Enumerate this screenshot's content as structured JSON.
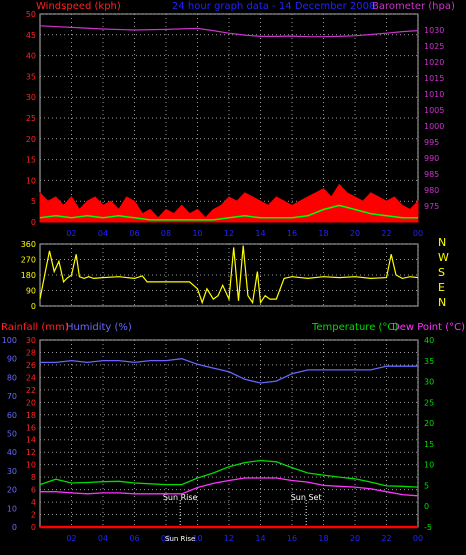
{
  "header": {
    "windspeed_label": "Windspeed (kph)",
    "title": "24 hour graph data - 14 December 2008",
    "barometer_label": "Barometer (hpa)"
  },
  "lower_header": {
    "rainfall_label": "Rainfall (mm)",
    "humidity_label": "Humidity (%)",
    "temperature_label": "Temperature (°C)",
    "dewpoint_label": "Dew Point (°C)"
  },
  "compass": [
    "N",
    "W",
    "S",
    "E",
    "N"
  ],
  "sun": {
    "rise_label": "Sun Rise",
    "set_label": "Sun Set",
    "rise_hour": 8.9,
    "set_hour": 16.9,
    "rise_time_label": "Sun Rise"
  },
  "colors": {
    "wind": "#ff0000",
    "gust": "#ff0000",
    "avg_wind": "#00ff00",
    "barometer": "#cc33cc",
    "direction": "#ffff00",
    "humidity": "#6666ff",
    "temperature": "#00dd00",
    "dewpoint": "#ff33ff",
    "rainfall": "#ff0000",
    "grid": "#9a9a9a",
    "axis_title": "#2222ff"
  },
  "chart_data": [
    {
      "type": "area",
      "name": "wind-barometer",
      "x_ticks": [
        "02",
        "04",
        "06",
        "08",
        "10",
        "12",
        "14",
        "16",
        "18",
        "20",
        "22",
        "00"
      ],
      "xlim": [
        0,
        24
      ],
      "y_left": {
        "label": "Windspeed (kph)",
        "range": [
          0,
          50
        ],
        "ticks": [
          0,
          5,
          10,
          15,
          20,
          25,
          30,
          35,
          40,
          45,
          50
        ]
      },
      "y_right": {
        "label": "Barometer (hpa)",
        "range": [
          970,
          1035
        ],
        "ticks": [
          975,
          980,
          985,
          990,
          995,
          1000,
          1005,
          1010,
          1015,
          1020,
          1025,
          1030
        ]
      },
      "series": [
        {
          "name": "Windspeed (kph)",
          "axis": "left",
          "x": [
            0,
            0.5,
            1,
            1.5,
            2,
            2.5,
            3,
            3.5,
            4,
            4.5,
            5,
            5.5,
            6,
            6.5,
            7,
            7.5,
            8,
            8.5,
            9,
            9.5,
            10,
            10.5,
            11,
            11.5,
            12,
            12.5,
            13,
            13.5,
            14,
            14.5,
            15,
            15.5,
            16,
            16.5,
            17,
            17.5,
            18,
            18.5,
            19,
            19.5,
            20,
            20.5,
            21,
            21.5,
            22,
            22.5,
            23,
            23.5,
            24
          ],
          "values": [
            7,
            5,
            6,
            4,
            6,
            3,
            5,
            6,
            4,
            5,
            3,
            6,
            5,
            2,
            3,
            1,
            3,
            2,
            4,
            2,
            3,
            1,
            3,
            4,
            6,
            5,
            7,
            6,
            5,
            4,
            6,
            5,
            4,
            5,
            6,
            7,
            8,
            6,
            9,
            7,
            6,
            5,
            7,
            6,
            5,
            6,
            4,
            3,
            5
          ]
        },
        {
          "name": "Average wind",
          "axis": "left",
          "x": [
            0,
            1,
            2,
            3,
            4,
            5,
            6,
            7,
            8,
            9,
            10,
            11,
            12,
            13,
            14,
            15,
            16,
            17,
            18,
            19,
            20,
            21,
            22,
            23,
            24
          ],
          "values": [
            1,
            1.5,
            1,
            1.5,
            1,
            1.5,
            1,
            0.5,
            0.5,
            0.5,
            0.5,
            0.5,
            1,
            1.5,
            1,
            1,
            1,
            1.5,
            3,
            4,
            3,
            2,
            1.5,
            1,
            1
          ]
        },
        {
          "name": "Barometer (hpa)",
          "axis": "right",
          "x": [
            0,
            2,
            4,
            6,
            8,
            10,
            11,
            12,
            13,
            14,
            15,
            16,
            17,
            18,
            19,
            20,
            21,
            22,
            23,
            24
          ],
          "values": [
            1031.3,
            1030.8,
            1030.3,
            1030.0,
            1030.2,
            1030.5,
            1029.8,
            1029.0,
            1028.4,
            1028.0,
            1028.0,
            1028.1,
            1027.9,
            1027.9,
            1028.0,
            1028.2,
            1028.6,
            1029.0,
            1029.5,
            1029.8
          ]
        }
      ]
    },
    {
      "type": "line",
      "name": "wind-direction",
      "xlim": [
        0,
        24
      ],
      "y_left": {
        "range": [
          0,
          360
        ],
        "ticks": [
          0,
          90,
          180,
          270,
          360
        ]
      },
      "y_right_labels": [
        "N",
        "W",
        "S",
        "E",
        "N"
      ],
      "series": [
        {
          "name": "Wind direction",
          "x": [
            0,
            0.3,
            0.6,
            0.9,
            1.2,
            1.5,
            1.7,
            2.0,
            2.3,
            2.5,
            2.8,
            3.1,
            3.4,
            4.0,
            5.0,
            6.0,
            6.5,
            6.8,
            7.0,
            8.0,
            9.0,
            9.5,
            10.0,
            10.3,
            10.6,
            11.0,
            11.3,
            11.6,
            12.0,
            12.3,
            12.6,
            12.9,
            13.2,
            13.5,
            13.8,
            14.0,
            14.3,
            14.6,
            15.0,
            15.5,
            16.0,
            17.0,
            18.0,
            19.0,
            20.0,
            21.0,
            22.0,
            22.3,
            22.6,
            23.0,
            23.5,
            24.0
          ],
          "values": [
            40,
            180,
            320,
            200,
            260,
            140,
            160,
            180,
            300,
            170,
            160,
            170,
            160,
            165,
            170,
            160,
            175,
            140,
            140,
            140,
            140,
            140,
            100,
            20,
            100,
            40,
            60,
            120,
            40,
            340,
            30,
            350,
            60,
            20,
            200,
            20,
            60,
            40,
            40,
            160,
            170,
            160,
            170,
            165,
            170,
            160,
            165,
            300,
            180,
            160,
            170,
            165
          ]
        }
      ]
    },
    {
      "type": "line",
      "name": "temperature-humidity-rainfall",
      "x_ticks": [
        "02",
        "04",
        "06",
        "08",
        "10",
        "12",
        "14",
        "16",
        "18",
        "20",
        "22",
        "00"
      ],
      "xlim": [
        0,
        24
      ],
      "y_humidity": {
        "label": "Humidity (%)",
        "range": [
          0,
          100
        ],
        "ticks": [
          0,
          10,
          20,
          30,
          40,
          50,
          60,
          70,
          80,
          90,
          100
        ]
      },
      "y_rainfall": {
        "label": "Rainfall (mm)",
        "range": [
          0,
          30
        ],
        "ticks": [
          0,
          2,
          4,
          6,
          8,
          10,
          12,
          14,
          16,
          18,
          20,
          22,
          24,
          26,
          28,
          30
        ]
      },
      "y_temperature": {
        "label": "Temperature (°C)",
        "range": [
          -5,
          40
        ],
        "ticks": [
          -5,
          0,
          5,
          10,
          15,
          20,
          25,
          30,
          35,
          40
        ]
      },
      "series": [
        {
          "name": "Humidity (%)",
          "axis": "humidity",
          "x": [
            0,
            1,
            2,
            3,
            4,
            5,
            6,
            7,
            8,
            9,
            10,
            11,
            12,
            13,
            14,
            15,
            16,
            17,
            18,
            19,
            20,
            21,
            22,
            23,
            24
          ],
          "values": [
            88,
            88,
            89,
            88,
            89,
            89,
            88,
            89,
            89,
            90,
            87,
            85,
            83,
            79,
            77,
            78,
            82,
            84,
            84,
            84,
            84,
            84,
            86,
            86,
            86
          ]
        },
        {
          "name": "Temperature (°C)",
          "axis": "temperature",
          "x": [
            0,
            1,
            2,
            3,
            4,
            5,
            6,
            7,
            8,
            9,
            10,
            11,
            12,
            13,
            14,
            15,
            16,
            17,
            18,
            19,
            20,
            21,
            22,
            23,
            24
          ],
          "values": [
            5.2,
            6.5,
            5.6,
            5.7,
            5.9,
            6.0,
            5.6,
            5.4,
            5.2,
            5.2,
            6.8,
            8.0,
            9.5,
            10.5,
            11.0,
            10.7,
            9.3,
            8.0,
            7.5,
            7.0,
            6.6,
            5.8,
            4.9,
            4.8,
            4.6
          ]
        },
        {
          "name": "Dew Point (°C)",
          "axis": "temperature",
          "x": [
            0,
            1,
            2,
            3,
            4,
            5,
            6,
            7,
            8,
            9,
            10,
            11,
            12,
            13,
            14,
            15,
            16,
            17,
            18,
            19,
            20,
            21,
            22,
            23,
            24
          ],
          "values": [
            3.5,
            3.5,
            3.2,
            3.0,
            3.2,
            3.2,
            3.0,
            3.0,
            3.0,
            3.0,
            4.5,
            5.5,
            6.2,
            6.8,
            6.8,
            6.8,
            6.2,
            5.8,
            5.0,
            4.8,
            4.6,
            4.2,
            3.5,
            2.8,
            2.5
          ]
        },
        {
          "name": "Rainfall (mm)",
          "axis": "rainfall",
          "x": [
            0,
            24
          ],
          "values": [
            0,
            0
          ]
        }
      ]
    }
  ]
}
